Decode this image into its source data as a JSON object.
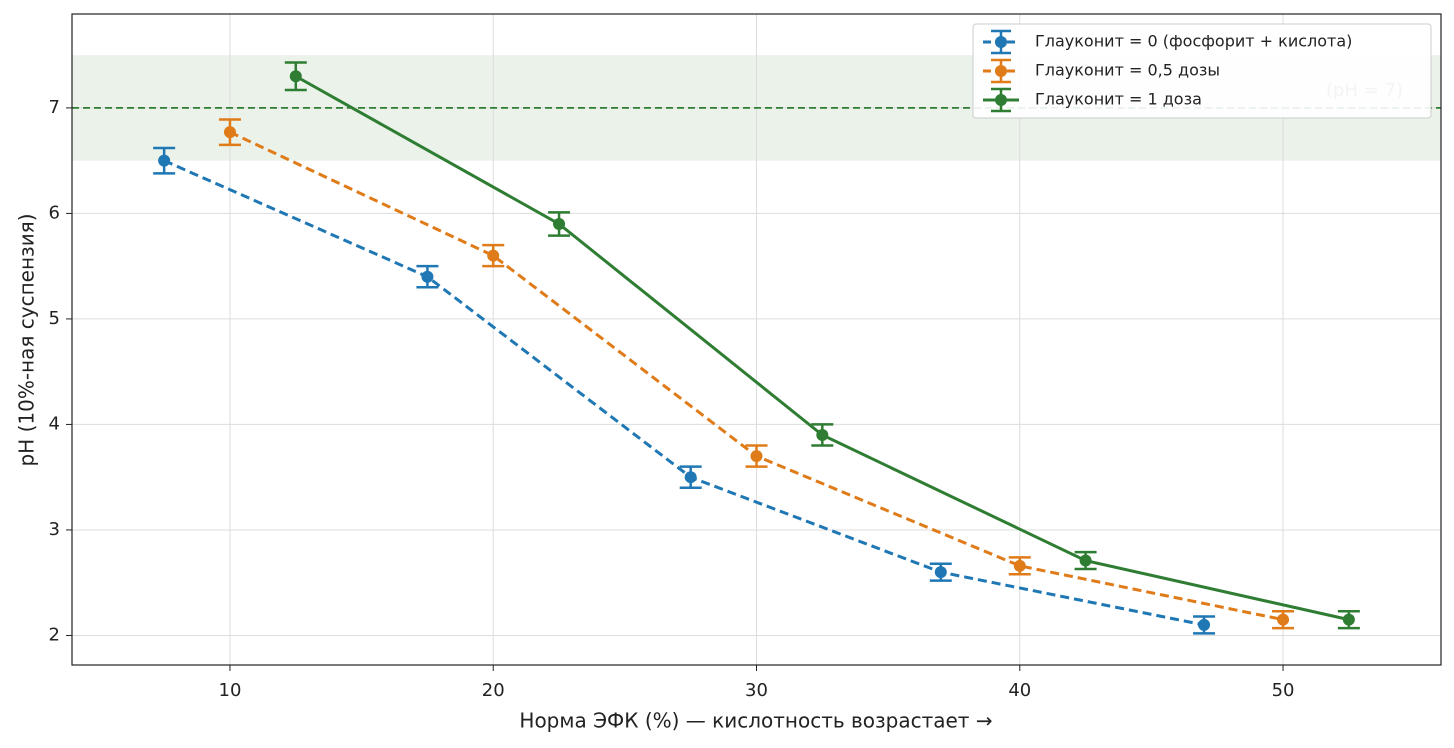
{
  "chart_data": {
    "type": "errorbar_line",
    "xlabel": "Норма ЭФК (%)  —  кислотность возрастает  →",
    "ylabel": "pH (10%-ная суспензия)",
    "xlim": [
      4,
      56
    ],
    "ylim": [
      1.72,
      7.89
    ],
    "xticks": [
      10,
      20,
      30,
      40,
      50
    ],
    "yticks": [
      2,
      3,
      4,
      5,
      6,
      7
    ],
    "grid": true,
    "legend": "upper right",
    "band": {
      "from": 6.5,
      "to": 7.5,
      "color": "#2e7d32"
    },
    "reference_line": {
      "value": 7,
      "color": "#2e7d32",
      "label": "(pH = 7)"
    },
    "series": [
      {
        "name": "Глауконит = 0 (фосфорит + кислота)",
        "color": "#1f77b4",
        "dash": true,
        "x": [
          7.5,
          17.5,
          27.5,
          37,
          47
        ],
        "values": [
          6.5,
          5.4,
          3.5,
          2.6,
          2.1
        ],
        "errors": [
          0.12,
          0.1,
          0.1,
          0.08,
          0.08
        ]
      },
      {
        "name": "Глауконит = 0,5 дозы",
        "color": "#e07b1a",
        "dash": true,
        "x": [
          10,
          20,
          30,
          40,
          50
        ],
        "values": [
          6.77,
          5.6,
          3.7,
          2.66,
          2.15
        ],
        "errors": [
          0.12,
          0.1,
          0.1,
          0.08,
          0.08
        ]
      },
      {
        "name": "Глауконит = 1 доза",
        "color": "#2e7d32",
        "dash": false,
        "x": [
          12.5,
          22.5,
          32.5,
          42.5,
          52.5
        ],
        "values": [
          7.3,
          5.9,
          3.9,
          2.71,
          2.15
        ],
        "errors": [
          0.13,
          0.11,
          0.1,
          0.08,
          0.08
        ]
      }
    ]
  }
}
